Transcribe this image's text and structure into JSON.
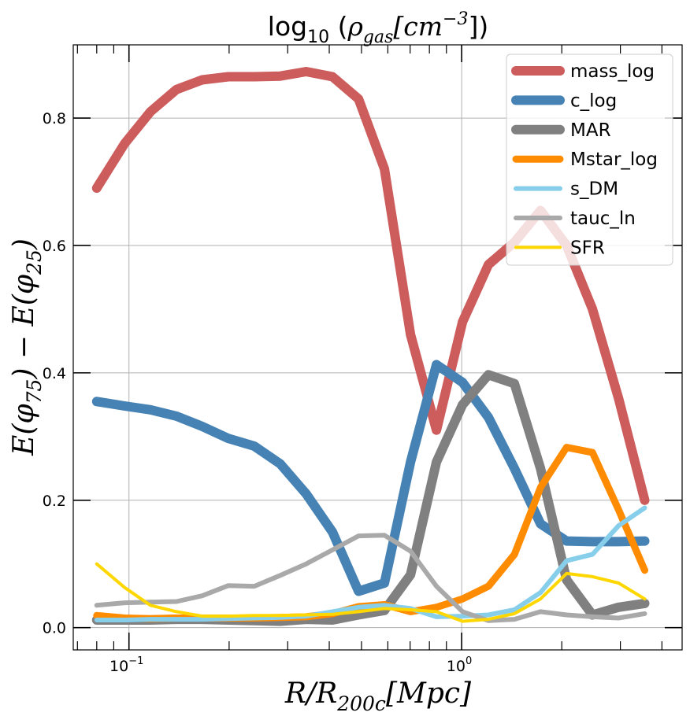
{
  "chart_data": {
    "type": "line",
    "title": "log10(ρgas[cm⁻³])",
    "title_parts": {
      "prefix": "log",
      "sub": "10",
      "open": " (",
      "symbol": "ρ",
      "symbol_sub": "gas",
      "bracket": "[cm",
      "sup": "−3",
      "close": "])"
    },
    "xlabel": "R/R200c[Mpc]",
    "xlabel_parts": {
      "main": "R/R",
      "sub": "200c",
      "rest": "[Mpc]"
    },
    "ylabel": "E(φ75) − E(φ25)",
    "ylabel_parts": {
      "a": "E(φ",
      "a_sub": "75",
      "b": ") − E(φ",
      "b_sub": "25",
      "c": ")"
    },
    "xscale": "log",
    "xlim": [
      0.068,
      4.6
    ],
    "ylim": [
      -0.035,
      0.915
    ],
    "yticks": [
      0.0,
      0.2,
      0.4,
      0.6,
      0.8
    ],
    "ytick_labels": [
      "0.0",
      "0.2",
      "0.4",
      "0.6",
      "0.8"
    ],
    "xticks_major": [
      0.1,
      1
    ],
    "xtick_labels": [
      {
        "base": "10",
        "exp": "−1"
      },
      {
        "base": "10",
        "exp": "0"
      }
    ],
    "grid": true,
    "legend_position": "top-right",
    "x": [
      0.08,
      0.097,
      0.116,
      0.139,
      0.166,
      0.199,
      0.238,
      0.285,
      0.341,
      0.409,
      0.49,
      0.586,
      0.702,
      0.84,
      1.006,
      1.204,
      1.441,
      1.726,
      2.067,
      2.474,
      2.962,
      3.55
    ],
    "series": [
      {
        "name": "mass_log",
        "color": "#cd5c5c",
        "width": 12,
        "values": [
          0.69,
          0.76,
          0.81,
          0.845,
          0.86,
          0.865,
          0.865,
          0.866,
          0.873,
          0.865,
          0.83,
          0.72,
          0.46,
          0.31,
          0.48,
          0.57,
          0.605,
          0.655,
          0.6,
          0.5,
          0.36,
          0.2
        ]
      },
      {
        "name": "c_log",
        "color": "#4682b4",
        "width": 12,
        "values": [
          0.355,
          0.348,
          0.342,
          0.332,
          0.316,
          0.297,
          0.285,
          0.257,
          0.21,
          0.15,
          0.057,
          0.07,
          0.26,
          0.413,
          0.385,
          0.33,
          0.25,
          0.163,
          0.136,
          0.135,
          0.135,
          0.136
        ]
      },
      {
        "name": "MAR",
        "color": "#808080",
        "width": 12,
        "values": [
          0.012,
          0.012,
          0.012,
          0.013,
          0.013,
          0.012,
          0.011,
          0.01,
          0.013,
          0.012,
          0.02,
          0.027,
          0.083,
          0.26,
          0.35,
          0.397,
          0.383,
          0.25,
          0.075,
          0.02,
          0.032,
          0.038
        ]
      },
      {
        "name": "Mstar_log",
        "color": "#ff8c00",
        "width": 9,
        "values": [
          0.019,
          0.015,
          0.014,
          0.015,
          0.015,
          0.015,
          0.015,
          0.016,
          0.017,
          0.022,
          0.033,
          0.036,
          0.025,
          0.032,
          0.045,
          0.065,
          0.115,
          0.22,
          0.283,
          0.275,
          0.185,
          0.09
        ]
      },
      {
        "name": "s_DM",
        "color": "#87ceeb",
        "width": 6,
        "values": [
          0.012,
          0.012,
          0.013,
          0.013,
          0.013,
          0.014,
          0.015,
          0.016,
          0.018,
          0.025,
          0.032,
          0.035,
          0.03,
          0.017,
          0.018,
          0.02,
          0.028,
          0.055,
          0.105,
          0.115,
          0.16,
          0.188
        ]
      },
      {
        "name": "tauc_ln",
        "color": "#a9a9a9",
        "width": 6,
        "values": [
          0.035,
          0.039,
          0.04,
          0.041,
          0.05,
          0.066,
          0.065,
          0.082,
          0.1,
          0.122,
          0.144,
          0.145,
          0.12,
          0.065,
          0.025,
          0.011,
          0.013,
          0.025,
          0.02,
          0.017,
          0.015,
          0.022
        ]
      },
      {
        "name": "SFR",
        "color": "#ffd700",
        "width": 4,
        "values": [
          0.1,
          0.063,
          0.035,
          0.025,
          0.018,
          0.018,
          0.019,
          0.019,
          0.02,
          0.021,
          0.025,
          0.03,
          0.028,
          0.025,
          0.01,
          0.013,
          0.022,
          0.045,
          0.085,
          0.08,
          0.07,
          0.045
        ]
      }
    ]
  }
}
